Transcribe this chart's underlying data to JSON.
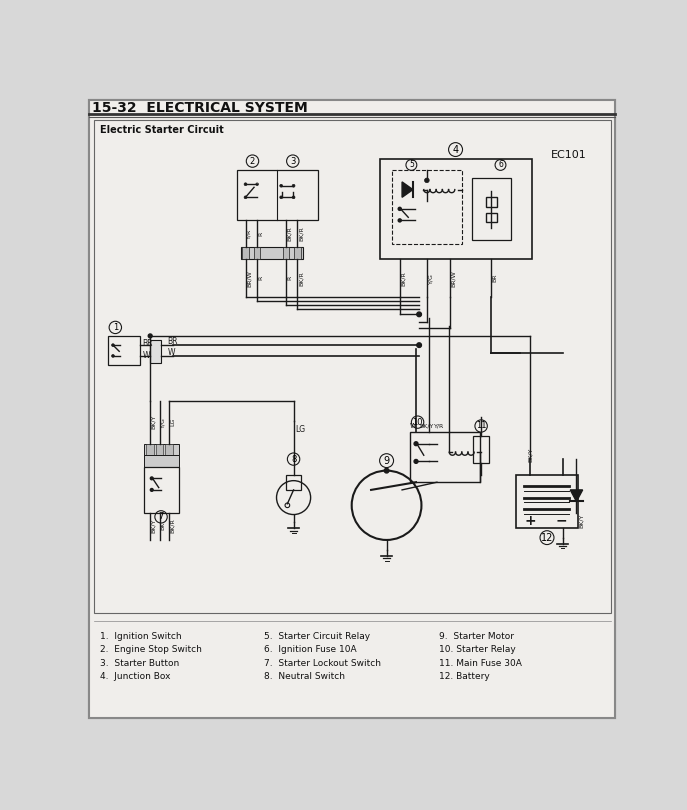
{
  "title": "15-32  ELECTRICAL SYSTEM",
  "subtitle": "Electric Starter Circuit",
  "ec_label": "EC101",
  "bg_color": "#d8d8d8",
  "diagram_bg": "#f0eeeb",
  "line_color": "#1a1a1a",
  "legend_col1": [
    "1.  Ignition Switch",
    "2.  Engine Stop Switch",
    "3.  Starter Button",
    "4.  Junction Box"
  ],
  "legend_col2": [
    "5.  Starter Circuit Relay",
    "6.  Ignition Fuse 10A",
    "7.  Starter Lockout Switch",
    "8.  Neutral Switch"
  ],
  "legend_col3": [
    "9.  Starter Motor",
    "10. Starter Relay",
    "11. Main Fuse 30A",
    "12. Battery"
  ]
}
